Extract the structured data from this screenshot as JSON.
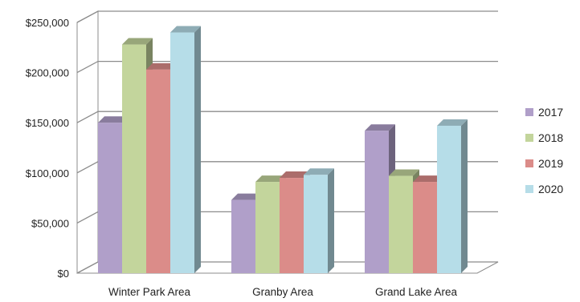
{
  "chart_data": {
    "type": "bar",
    "categories": [
      "Winter Park Area",
      "Granby Area",
      "Grand Lake Area"
    ],
    "series": [
      {
        "name": "2017",
        "color": "#b09fc9",
        "values": [
          150000,
          73000,
          142000
        ]
      },
      {
        "name": "2018",
        "color": "#c3d59c",
        "values": [
          228000,
          91000,
          97000
        ]
      },
      {
        "name": "2019",
        "color": "#db8c89",
        "values": [
          203000,
          95000,
          91000
        ]
      },
      {
        "name": "2020",
        "color": "#b6dde8",
        "values": [
          240000,
          98000,
          147000
        ]
      }
    ],
    "ylim": [
      0,
      250000
    ],
    "yticks": [
      0,
      50000,
      100000,
      150000,
      200000,
      250000
    ],
    "ytick_labels": [
      "$0",
      "$50,000",
      "$100,000",
      "$150,000",
      "$200,000",
      "$250,000"
    ],
    "grid": true,
    "legend": "right",
    "style": "3d-clustered-column"
  }
}
